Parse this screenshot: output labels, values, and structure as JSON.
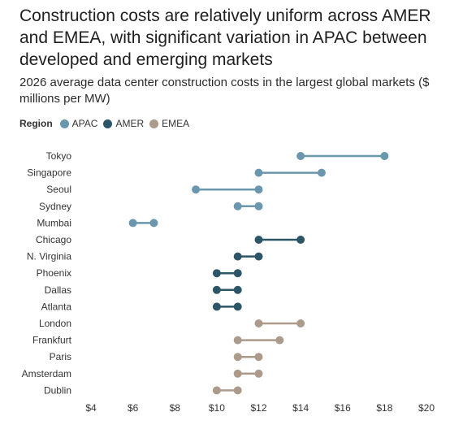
{
  "chart_data": {
    "type": "dumbbell",
    "title": "Construction costs are relatively uniform across AMER and EMEA, with significant variation in APAC between developed and emerging markets",
    "subtitle": "2026 average data center construction costs in the largest global markets ($ millions per MW)",
    "legend_title": "Region",
    "legend_placement": "top-left",
    "series": [
      {
        "name": "APAC",
        "color": "#6a97ad"
      },
      {
        "name": "AMER",
        "color": "#2d5568"
      },
      {
        "name": "EMEA",
        "color": "#ac9a8b"
      }
    ],
    "markets": [
      {
        "name": "Tokyo",
        "region": "APAC",
        "low": 14,
        "high": 18
      },
      {
        "name": "Singapore",
        "region": "APAC",
        "low": 12,
        "high": 15
      },
      {
        "name": "Seoul",
        "region": "APAC",
        "low": 9,
        "high": 12
      },
      {
        "name": "Sydney",
        "region": "APAC",
        "low": 11,
        "high": 12
      },
      {
        "name": "Mumbai",
        "region": "APAC",
        "low": 6,
        "high": 7
      },
      {
        "name": "Chicago",
        "region": "AMER",
        "low": 12,
        "high": 14
      },
      {
        "name": "N. Virginia",
        "region": "AMER",
        "low": 11,
        "high": 12
      },
      {
        "name": "Phoenix",
        "region": "AMER",
        "low": 10,
        "high": 11
      },
      {
        "name": "Dallas",
        "region": "AMER",
        "low": 10,
        "high": 11
      },
      {
        "name": "Atlanta",
        "region": "AMER",
        "low": 10,
        "high": 11
      },
      {
        "name": "London",
        "region": "EMEA",
        "low": 12,
        "high": 14
      },
      {
        "name": "Frankfurt",
        "region": "EMEA",
        "low": 11,
        "high": 13
      },
      {
        "name": "Paris",
        "region": "EMEA",
        "low": 11,
        "high": 12
      },
      {
        "name": "Amsterdam",
        "region": "EMEA",
        "low": 11,
        "high": 12
      },
      {
        "name": "Dublin",
        "region": "EMEA",
        "low": 10,
        "high": 11
      }
    ],
    "xlim": [
      4,
      20
    ],
    "x_ticks": [
      4,
      6,
      8,
      10,
      12,
      14,
      16,
      18,
      20
    ],
    "x_tick_labels": [
      "$4",
      "$6",
      "$8",
      "$10",
      "$12",
      "$14",
      "$16",
      "$18",
      "$20"
    ],
    "xlabel": "",
    "ylabel": "",
    "grid": false
  }
}
